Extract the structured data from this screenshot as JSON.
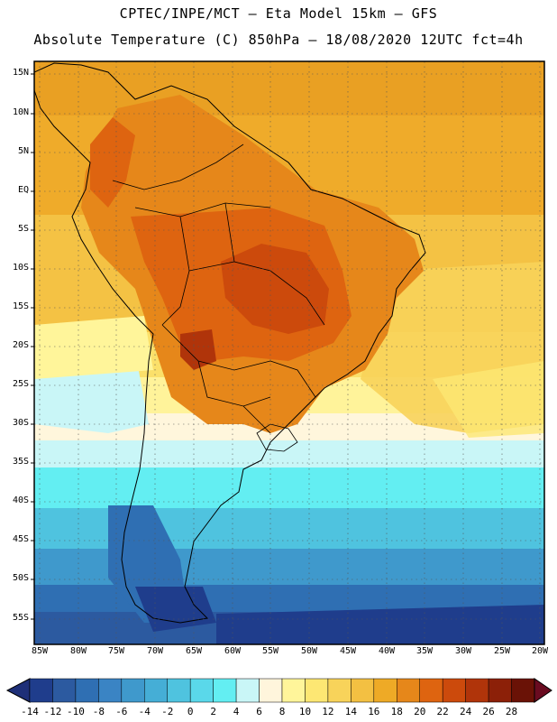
{
  "header": {
    "line1": "CPTEC/INPE/MCT –  Eta Model 15km – GFS",
    "line2": "Absolute Temperature (C) 850hPa – 18/08/2020 12UTC fct=4h"
  },
  "map": {
    "lat_labels": [
      "15N",
      "10N",
      "5N",
      "EQ",
      "5S",
      "10S",
      "15S",
      "20S",
      "25S",
      "30S",
      "35S",
      "40S",
      "45S",
      "50S",
      "55S"
    ],
    "lon_labels": [
      "85W",
      "80W",
      "75W",
      "70W",
      "65W",
      "60W",
      "55W",
      "50W",
      "45W",
      "40W",
      "35W",
      "30W",
      "25W",
      "20W"
    ]
  },
  "colorbar": {
    "labels": [
      "-14",
      "-12",
      "-10",
      "-8",
      "-6",
      "-4",
      "-2",
      "0",
      "2",
      "4",
      "6",
      "8",
      "10",
      "12",
      "14",
      "16",
      "18",
      "20",
      "22",
      "24",
      "26",
      "28"
    ],
    "colors": [
      "#1f3d8c",
      "#2c5aa0",
      "#2f6fb3",
      "#3a84c4",
      "#3f99cc",
      "#45aed6",
      "#4fc3df",
      "#5ad8ea",
      "#63eef2",
      "#c9f6f7",
      "#fff5dc",
      "#fff59a",
      "#fde773",
      "#f8d35a",
      "#f3c042",
      "#eeaa26",
      "#e6871a",
      "#de6410",
      "#cc4a0c",
      "#b0340a",
      "#8c2008",
      "#6a1206"
    ],
    "left_arrow": "#1e2f78",
    "right_arrow": "#6a0b20"
  }
}
